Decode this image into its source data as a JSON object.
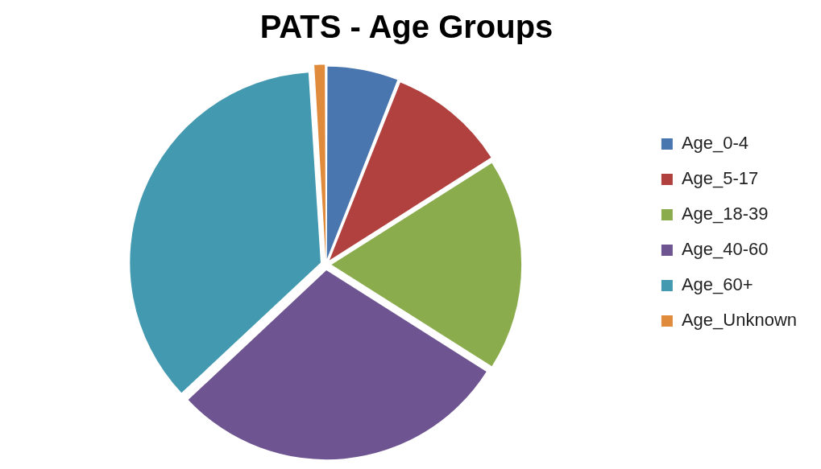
{
  "chart_data": {
    "type": "pie",
    "title": "PATS - Age Groups",
    "categories": [
      "Age_0-4",
      "Age_5-17",
      "Age_18-39",
      "Age_40-60",
      "Age_60+",
      "Age_Unknown"
    ],
    "values": [
      6,
      10,
      18,
      29,
      36,
      1
    ],
    "colors": [
      "#4a76b0",
      "#b0413e",
      "#8aac4c",
      "#6e5490",
      "#4399b0",
      "#e08a3c"
    ],
    "legend": "right"
  }
}
